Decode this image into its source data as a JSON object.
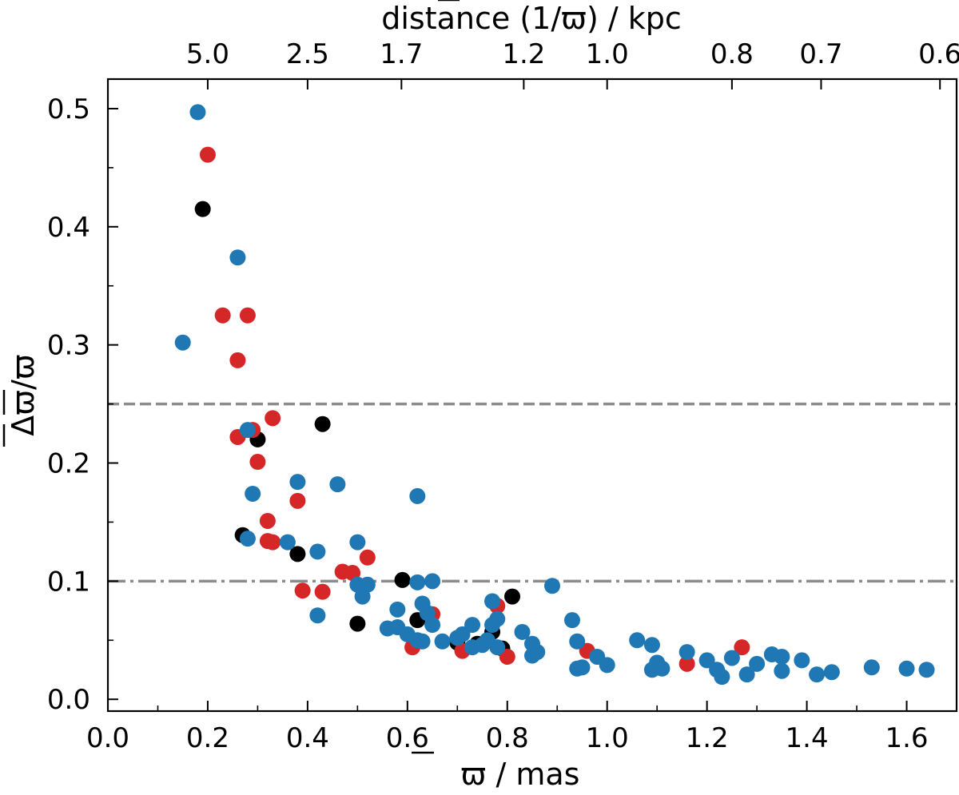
{
  "chart_data": {
    "type": "scatter",
    "xlabel": "ϖ / mas",
    "ylabel": "Δϖ/ϖ",
    "top_xlabel": "distance (1/ϖ) / kpc",
    "xlim": [
      0.0,
      1.7
    ],
    "ylim": [
      -0.01,
      0.525
    ],
    "x_ticks": [
      0.0,
      0.2,
      0.4,
      0.6,
      0.8,
      1.0,
      1.2,
      1.4,
      1.6
    ],
    "x_tick_labels": [
      "0.0",
      "0.2",
      "0.4",
      "0.6",
      "0.8",
      "1.0",
      "1.2",
      "1.4",
      "1.6"
    ],
    "y_ticks": [
      0.0,
      0.1,
      0.2,
      0.3,
      0.4,
      0.5
    ],
    "y_tick_labels": [
      "0.0",
      "0.1",
      "0.2",
      "0.3",
      "0.4",
      "0.5"
    ],
    "top_ticks": [
      {
        "parallax": 0.2,
        "label": "5.0"
      },
      {
        "parallax": 0.4,
        "label": "2.5"
      },
      {
        "parallax": 0.588,
        "label": "1.7"
      },
      {
        "parallax": 0.833,
        "label": "1.2"
      },
      {
        "parallax": 1.0,
        "label": "1.0"
      },
      {
        "parallax": 1.25,
        "label": "0.8"
      },
      {
        "parallax": 1.4286,
        "label": "0.7"
      },
      {
        "parallax": 1.6667,
        "label": "0.6"
      }
    ],
    "hlines": [
      {
        "y": 0.25,
        "style": "dashed",
        "color": "#8c8c8c"
      },
      {
        "y": 0.1,
        "style": "dashdot",
        "color": "#8c8c8c"
      }
    ],
    "series": [
      {
        "name": "black",
        "color": "#000000",
        "points": [
          [
            0.19,
            0.415
          ],
          [
            0.3,
            0.22
          ],
          [
            0.43,
            0.233
          ],
          [
            0.27,
            0.139
          ],
          [
            0.38,
            0.123
          ],
          [
            0.59,
            0.101
          ],
          [
            0.5,
            0.064
          ],
          [
            0.62,
            0.067
          ],
          [
            0.7,
            0.048
          ],
          [
            0.74,
            0.047
          ],
          [
            0.77,
            0.057
          ],
          [
            0.79,
            0.043
          ],
          [
            0.81,
            0.087
          ]
        ]
      },
      {
        "name": "red",
        "color": "#d62728",
        "points": [
          [
            0.2,
            0.461
          ],
          [
            0.23,
            0.325
          ],
          [
            0.28,
            0.325
          ],
          [
            0.26,
            0.287
          ],
          [
            0.33,
            0.238
          ],
          [
            0.29,
            0.228
          ],
          [
            0.26,
            0.222
          ],
          [
            0.3,
            0.201
          ],
          [
            0.38,
            0.168
          ],
          [
            0.32,
            0.151
          ],
          [
            0.32,
            0.134
          ],
          [
            0.33,
            0.133
          ],
          [
            0.52,
            0.12
          ],
          [
            0.47,
            0.108
          ],
          [
            0.49,
            0.107
          ],
          [
            0.39,
            0.092
          ],
          [
            0.43,
            0.091
          ],
          [
            0.65,
            0.072
          ],
          [
            0.78,
            0.079
          ],
          [
            0.61,
            0.044
          ],
          [
            0.71,
            0.041
          ],
          [
            0.8,
            0.036
          ],
          [
            0.96,
            0.041
          ],
          [
            1.16,
            0.03
          ],
          [
            1.27,
            0.044
          ]
        ]
      },
      {
        "name": "blue",
        "color": "#1f77b4",
        "points": [
          [
            0.18,
            0.497
          ],
          [
            0.26,
            0.374
          ],
          [
            0.15,
            0.302
          ],
          [
            0.28,
            0.228
          ],
          [
            0.29,
            0.174
          ],
          [
            0.38,
            0.184
          ],
          [
            0.46,
            0.182
          ],
          [
            0.62,
            0.172
          ],
          [
            0.28,
            0.136
          ],
          [
            0.36,
            0.133
          ],
          [
            0.42,
            0.125
          ],
          [
            0.5,
            0.133
          ],
          [
            0.5,
            0.097
          ],
          [
            0.52,
            0.097
          ],
          [
            0.51,
            0.087
          ],
          [
            0.62,
            0.099
          ],
          [
            0.65,
            0.1
          ],
          [
            0.42,
            0.071
          ],
          [
            0.58,
            0.076
          ],
          [
            0.63,
            0.081
          ],
          [
            0.64,
            0.073
          ],
          [
            0.65,
            0.063
          ],
          [
            0.56,
            0.06
          ],
          [
            0.58,
            0.061
          ],
          [
            0.6,
            0.055
          ],
          [
            0.62,
            0.05
          ],
          [
            0.63,
            0.049
          ],
          [
            0.67,
            0.049
          ],
          [
            0.7,
            0.052
          ],
          [
            0.71,
            0.055
          ],
          [
            0.73,
            0.063
          ],
          [
            0.73,
            0.044
          ],
          [
            0.75,
            0.046
          ],
          [
            0.76,
            0.05
          ],
          [
            0.77,
            0.063
          ],
          [
            0.77,
            0.083
          ],
          [
            0.78,
            0.068
          ],
          [
            0.78,
            0.044
          ],
          [
            0.83,
            0.057
          ],
          [
            0.85,
            0.047
          ],
          [
            0.85,
            0.037
          ],
          [
            0.86,
            0.04
          ],
          [
            0.89,
            0.096
          ],
          [
            0.93,
            0.067
          ],
          [
            0.94,
            0.049
          ],
          [
            0.94,
            0.026
          ],
          [
            0.95,
            0.027
          ],
          [
            0.98,
            0.036
          ],
          [
            1.0,
            0.029
          ],
          [
            1.06,
            0.05
          ],
          [
            1.09,
            0.046
          ],
          [
            1.09,
            0.025
          ],
          [
            1.1,
            0.031
          ],
          [
            1.11,
            0.026
          ],
          [
            1.16,
            0.04
          ],
          [
            1.2,
            0.033
          ],
          [
            1.22,
            0.025
          ],
          [
            1.23,
            0.019
          ],
          [
            1.25,
            0.035
          ],
          [
            1.28,
            0.021
          ],
          [
            1.3,
            0.03
          ],
          [
            1.33,
            0.038
          ],
          [
            1.35,
            0.036
          ],
          [
            1.35,
            0.024
          ],
          [
            1.39,
            0.033
          ],
          [
            1.42,
            0.021
          ],
          [
            1.45,
            0.023
          ],
          [
            1.53,
            0.027
          ],
          [
            1.6,
            0.026
          ],
          [
            1.64,
            0.025
          ]
        ]
      }
    ]
  }
}
